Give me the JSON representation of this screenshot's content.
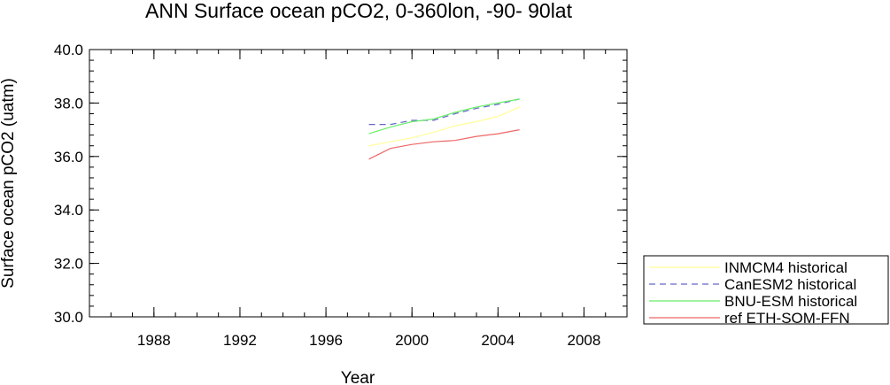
{
  "chart_data": {
    "type": "line",
    "title": "ANN Surface ocean pCO2,   0-360lon, -90- 90lat",
    "xlabel": "Year",
    "ylabel": "Surface ocean pCO2 (uatm)",
    "xlim": [
      1985,
      2010
    ],
    "ylim": [
      30.0,
      40.0
    ],
    "xticks": [
      1988,
      1992,
      1996,
      2000,
      2004,
      2008
    ],
    "xtick_labels": [
      "1988",
      "1992",
      "1996",
      "2000",
      "2004",
      "2008"
    ],
    "yticks": [
      30,
      32,
      34,
      36,
      38,
      40
    ],
    "ytick_labels": [
      "30.0",
      "32.0",
      "34.0",
      "36.0",
      "38.0",
      "40.0"
    ],
    "x": [
      1998,
      1999,
      2000,
      2001,
      2002,
      2003,
      2004,
      2005
    ],
    "legend_position": "bottom-right outside",
    "grid": false,
    "series": [
      {
        "name": "INMCM4 historical",
        "color": "#ffff99",
        "dash": "solid",
        "values": [
          36.4,
          36.55,
          36.7,
          36.9,
          37.15,
          37.3,
          37.5,
          37.85
        ]
      },
      {
        "name": "CanESM2 historical",
        "color": "#6666cc",
        "dash": "dashed",
        "values": [
          37.2,
          37.2,
          37.35,
          37.35,
          37.6,
          37.8,
          37.95,
          38.15
        ]
      },
      {
        "name": "BNU-ESM historical",
        "color": "#66ee66",
        "dash": "solid",
        "values": [
          36.85,
          37.1,
          37.3,
          37.4,
          37.65,
          37.85,
          38.0,
          38.15
        ]
      },
      {
        "name": "ref ETH-SOM-FFN",
        "color": "#ee6666",
        "dash": "solid",
        "values": [
          35.9,
          36.3,
          36.45,
          36.55,
          36.6,
          36.75,
          36.85,
          37.0
        ]
      }
    ]
  }
}
